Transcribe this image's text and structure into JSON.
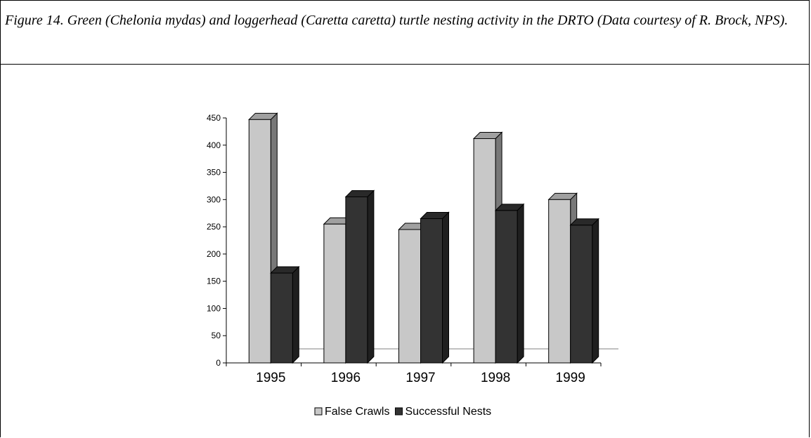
{
  "caption": "Figure 14. Green (Chelonia mydas) and loggerhead (Caretta caretta) turtle nesting activity in the DRTO (Data courtesy of R. Brock, NPS).",
  "chart_data": {
    "type": "bar3d",
    "categories": [
      "1995",
      "1996",
      "1997",
      "1998",
      "1999"
    ],
    "series": [
      {
        "name": "False Crawls",
        "color": "#c8c8c8",
        "values": [
          447,
          255,
          245,
          412,
          300
        ]
      },
      {
        "name": "Successful Nests",
        "color": "#333333",
        "values": [
          165,
          305,
          265,
          280,
          253
        ]
      }
    ],
    "ylim": [
      0,
      450
    ],
    "yticks": [
      0,
      50,
      100,
      150,
      200,
      250,
      300,
      350,
      400,
      450
    ],
    "legend": "bottom"
  }
}
